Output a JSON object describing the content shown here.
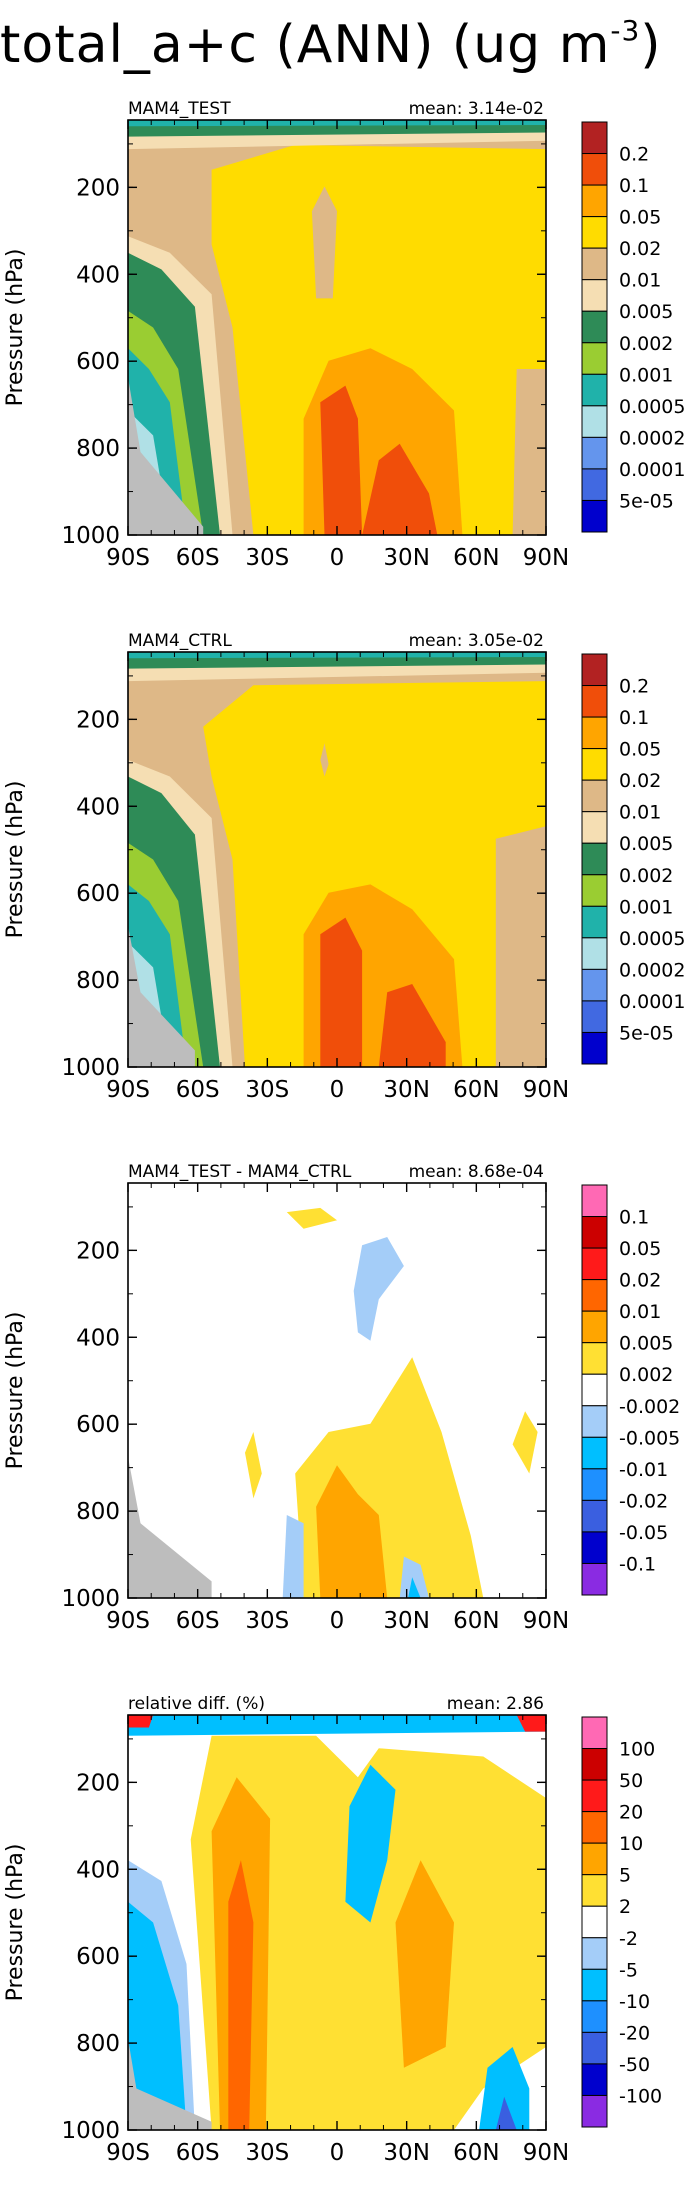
{
  "title": {
    "text": "total_a+c (ANN) (ug m",
    "sup": "-3",
    "close": ")"
  },
  "chart_data": [
    {
      "type": "heatmap",
      "label": "MAM4_TEST",
      "mean_label": "mean:",
      "mean": "3.14e-02",
      "ylabel": "Pressure (hPa)",
      "xticks": [
        "90S",
        "60S",
        "30S",
        "0",
        "30N",
        "60N",
        "90N"
      ],
      "yticks": [
        "200",
        "400",
        "600",
        "800",
        "1000"
      ],
      "ylim": [
        1000,
        45
      ],
      "colorbar": {
        "labels": [
          "0.2",
          "0.1",
          "0.05",
          "0.02",
          "0.01",
          "0.005",
          "0.002",
          "0.001",
          "0.0005",
          "0.0002",
          "0.0001",
          "5e-05"
        ],
        "colors": [
          "#b22222",
          "#f04e0a",
          "#ffa500",
          "#ffdc00",
          "#deb887",
          "#f5deb3",
          "#2e8b57",
          "#9acd32",
          "#20b2aa",
          "#b0e0e6",
          "#6495ed",
          "#4169e1",
          "#0000cd"
        ]
      }
    },
    {
      "type": "heatmap",
      "label": "MAM4_CTRL",
      "mean_label": "mean:",
      "mean": "3.05e-02",
      "ylabel": "Pressure (hPa)",
      "xticks": [
        "90S",
        "60S",
        "30S",
        "0",
        "30N",
        "60N",
        "90N"
      ],
      "yticks": [
        "200",
        "400",
        "600",
        "800",
        "1000"
      ],
      "ylim": [
        1000,
        45
      ],
      "colorbar": {
        "labels": [
          "0.2",
          "0.1",
          "0.05",
          "0.02",
          "0.01",
          "0.005",
          "0.002",
          "0.001",
          "0.0005",
          "0.0002",
          "0.0001",
          "5e-05"
        ],
        "colors": [
          "#b22222",
          "#f04e0a",
          "#ffa500",
          "#ffdc00",
          "#deb887",
          "#f5deb3",
          "#2e8b57",
          "#9acd32",
          "#20b2aa",
          "#b0e0e6",
          "#6495ed",
          "#4169e1",
          "#0000cd"
        ]
      }
    },
    {
      "type": "heatmap",
      "label": "MAM4_TEST - MAM4_CTRL",
      "mean_label": "mean:",
      "mean": "8.68e-04",
      "ylabel": "Pressure (hPa)",
      "xticks": [
        "90S",
        "60S",
        "30S",
        "0",
        "30N",
        "60N",
        "90N"
      ],
      "yticks": [
        "200",
        "400",
        "600",
        "800",
        "1000"
      ],
      "ylim": [
        1000,
        45
      ],
      "colorbar": {
        "labels": [
          "0.1",
          "0.05",
          "0.02",
          "0.01",
          "0.005",
          "0.002",
          "-0.002",
          "-0.005",
          "-0.01",
          "-0.02",
          "-0.05",
          "-0.1"
        ],
        "colors": [
          "#ff69b4",
          "#cc0000",
          "#ff1a1a",
          "#ff6600",
          "#ffa500",
          "#ffe033",
          "#ffffff",
          "#a4cdf8",
          "#00bfff",
          "#1e90ff",
          "#3a5fe0",
          "#0000cd",
          "#8a2be2"
        ]
      }
    },
    {
      "type": "heatmap",
      "label": "relative diff. (%)",
      "mean_label": "mean:",
      "mean": "2.86",
      "ylabel": "Pressure (hPa)",
      "xticks": [
        "90S",
        "60S",
        "30S",
        "0",
        "30N",
        "60N",
        "90N"
      ],
      "yticks": [
        "200",
        "400",
        "600",
        "800",
        "1000"
      ],
      "ylim": [
        1000,
        45
      ],
      "colorbar": {
        "labels": [
          "100",
          "50",
          "20",
          "10",
          "5",
          "2",
          "-2",
          "-5",
          "-10",
          "-20",
          "-50",
          "-100"
        ],
        "colors": [
          "#ff69b4",
          "#cc0000",
          "#ff1a1a",
          "#ff6600",
          "#ffa500",
          "#ffe033",
          "#ffffff",
          "#a4cdf8",
          "#00bfff",
          "#1e90ff",
          "#3a5fe0",
          "#0000cd",
          "#8a2be2"
        ]
      }
    }
  ]
}
